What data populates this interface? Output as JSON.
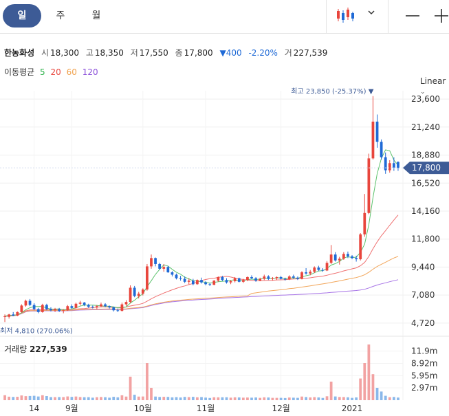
{
  "tabs": [
    {
      "label": "일",
      "active": true
    },
    {
      "label": "주",
      "active": false
    },
    {
      "label": "월",
      "active": false
    }
  ],
  "toolbar": {
    "chart_type_icon": "candlestick-icon",
    "dropdown_icon": "chevron-down-icon",
    "zoom_out_icon": "minus-icon",
    "zoom_in_icon": "plus-icon"
  },
  "stock": {
    "name": "한농화성",
    "open_label": "시",
    "open": "18,300",
    "high_label": "고",
    "high": "18,350",
    "low_label": "저",
    "low": "17,550",
    "close_label": "종",
    "close": "17,800",
    "change_arrow": "▼",
    "change": "400",
    "change_pct": "-2.20%",
    "volume_label": "거",
    "volume": "227,539"
  },
  "moving_average": {
    "label": "이동평균",
    "periods": [
      {
        "value": "5",
        "color": "#2eb24b"
      },
      {
        "value": "20",
        "color": "#e8453c"
      },
      {
        "value": "60",
        "color": "#f0a04b"
      },
      {
        "value": "120",
        "color": "#8a4fd9"
      }
    ]
  },
  "scale_select": {
    "value": "Linear"
  },
  "colors": {
    "up": "#e8453c",
    "down": "#1f6ad6",
    "accent": "#3d5b96",
    "vol_up": "#f2a2a2",
    "vol_down": "#8ab8ea"
  },
  "chart_data": {
    "type": "candlestick",
    "y_ticks": [
      "23,600",
      "21,240",
      "18,880",
      "16,520",
      "14,160",
      "11,800",
      "9,440",
      "7,080",
      "4,720"
    ],
    "y_tick_values": [
      23600,
      21240,
      18880,
      16520,
      14160,
      11800,
      9440,
      7080,
      4720
    ],
    "ylim": [
      4250,
      24300
    ],
    "current_price_label": "17,800",
    "current_price": 17800,
    "high_annotation": "최고 23,850 (-25.37%)",
    "low_annotation": "최저 4,810 (270.06%)",
    "x_ticks": [
      "14",
      "9월",
      "10월",
      "11월",
      "12월",
      "2021"
    ],
    "x_tick_index": [
      7,
      16,
      33,
      48,
      66,
      83
    ],
    "num_bars": 95,
    "ohlc": [
      [
        5300,
        5450,
        4810,
        5300
      ],
      [
        5250,
        5500,
        5100,
        5450
      ],
      [
        5450,
        5650,
        5300,
        5350
      ],
      [
        5350,
        5700,
        5300,
        5650
      ],
      [
        5650,
        6300,
        5600,
        6200
      ],
      [
        6200,
        6700,
        6100,
        6600
      ],
      [
        6600,
        6750,
        6150,
        6250
      ],
      [
        6250,
        6400,
        5800,
        5900
      ],
      [
        5900,
        6000,
        5550,
        5650
      ],
      [
        5650,
        6350,
        5600,
        6250
      ],
      [
        6250,
        6350,
        5800,
        5900
      ],
      [
        5900,
        6050,
        5700,
        5800
      ],
      [
        5800,
        6000,
        5650,
        5900
      ],
      [
        5900,
        6000,
        5650,
        5750
      ],
      [
        5750,
        5900,
        5550,
        5800
      ],
      [
        5800,
        6250,
        5750,
        6150
      ],
      [
        6150,
        6300,
        5900,
        6000
      ],
      [
        6000,
        6450,
        5950,
        6350
      ],
      [
        6350,
        6600,
        6200,
        6450
      ],
      [
        6450,
        6500,
        6150,
        6250
      ],
      [
        6250,
        6350,
        6000,
        6100
      ],
      [
        6100,
        6200,
        5950,
        6050
      ],
      [
        6050,
        6250,
        5900,
        6150
      ],
      [
        6150,
        6450,
        6050,
        6300
      ],
      [
        6300,
        6400,
        6050,
        6150
      ],
      [
        6150,
        6200,
        5950,
        6050
      ],
      [
        6050,
        6100,
        5700,
        5800
      ],
      [
        5800,
        5950,
        5650,
        5750
      ],
      [
        5750,
        6450,
        5700,
        6300
      ],
      [
        6300,
        6650,
        6150,
        6500
      ],
      [
        6500,
        7900,
        6400,
        7700
      ],
      [
        7700,
        7850,
        6900,
        7000
      ],
      [
        7000,
        7350,
        6800,
        7200
      ],
      [
        7200,
        7650,
        7050,
        7550
      ],
      [
        7550,
        9700,
        7450,
        9500
      ],
      [
        9500,
        10500,
        9300,
        10200
      ],
      [
        10200,
        10250,
        9500,
        9700
      ],
      [
        9700,
        9800,
        9200,
        9300
      ],
      [
        9300,
        9700,
        9050,
        9450
      ],
      [
        9450,
        9550,
        8950,
        9000
      ],
      [
        9000,
        9100,
        8650,
        8800
      ],
      [
        8800,
        8900,
        8400,
        8500
      ],
      [
        8500,
        8700,
        8300,
        8450
      ],
      [
        8450,
        8650,
        8100,
        8200
      ],
      [
        8200,
        8500,
        8000,
        8300
      ],
      [
        8300,
        8450,
        7900,
        8000
      ],
      [
        8000,
        8400,
        7950,
        8350
      ],
      [
        8350,
        8550,
        8050,
        8150
      ],
      [
        8150,
        8250,
        7900,
        8000
      ],
      [
        8000,
        8100,
        7850,
        7950
      ],
      [
        7950,
        8350,
        7900,
        8300
      ],
      [
        8300,
        8650,
        8200,
        8600
      ],
      [
        8600,
        8700,
        8250,
        8350
      ],
      [
        8350,
        8500,
        8050,
        8150
      ],
      [
        8150,
        8350,
        8000,
        8250
      ],
      [
        8250,
        8600,
        8150,
        8500
      ],
      [
        8500,
        8550,
        8150,
        8200
      ],
      [
        8200,
        8450,
        8100,
        8350
      ],
      [
        8350,
        8650,
        8250,
        8600
      ],
      [
        8600,
        8750,
        8400,
        8500
      ],
      [
        8500,
        8600,
        8200,
        8300
      ],
      [
        8300,
        8550,
        8250,
        8450
      ],
      [
        8450,
        8800,
        8350,
        8650
      ],
      [
        8650,
        8750,
        8350,
        8450
      ],
      [
        8450,
        8600,
        8300,
        8500
      ],
      [
        8500,
        8650,
        8350,
        8600
      ],
      [
        8600,
        8700,
        8400,
        8450
      ],
      [
        8450,
        8550,
        8300,
        8400
      ],
      [
        8400,
        8750,
        8350,
        8650
      ],
      [
        8650,
        8800,
        8450,
        8550
      ],
      [
        8550,
        8650,
        8350,
        8450
      ],
      [
        8450,
        9100,
        8400,
        9000
      ],
      [
        9000,
        9350,
        8800,
        8900
      ],
      [
        8900,
        9200,
        8750,
        9050
      ],
      [
        9050,
        9500,
        8950,
        9400
      ],
      [
        9400,
        9550,
        9100,
        9200
      ],
      [
        9200,
        9350,
        9050,
        9150
      ],
      [
        9150,
        9950,
        9100,
        9800
      ],
      [
        9800,
        11300,
        9700,
        10500
      ],
      [
        10500,
        10700,
        9900,
        10000
      ],
      [
        10000,
        10300,
        9650,
        10150
      ],
      [
        10150,
        10700,
        10050,
        10550
      ],
      [
        10550,
        10750,
        10200,
        10350
      ],
      [
        10350,
        10450,
        10100,
        10200
      ],
      [
        10200,
        10400,
        9900,
        10100
      ],
      [
        10100,
        12300,
        10000,
        12200
      ],
      [
        12200,
        15600,
        12000,
        14000
      ],
      [
        14000,
        19000,
        13900,
        18600
      ],
      [
        18600,
        23850,
        18500,
        21700
      ],
      [
        21700,
        22300,
        19500,
        20000
      ],
      [
        20000,
        20200,
        18500,
        18700
      ],
      [
        18700,
        19100,
        17300,
        17600
      ],
      [
        17600,
        18450,
        17400,
        18200
      ],
      [
        18200,
        18700,
        17550,
        17800
      ],
      [
        18300,
        18350,
        17550,
        17800
      ]
    ],
    "volume_ticks": [
      "11.9m",
      "8.92m",
      "5.95m",
      "2.97m"
    ],
    "volume_tick_values": [
      11900000,
      8920000,
      5950000,
      2970000
    ],
    "volume_max": 15000000,
    "volume_title_label": "거래량",
    "volume_title_value": "227,539"
  }
}
